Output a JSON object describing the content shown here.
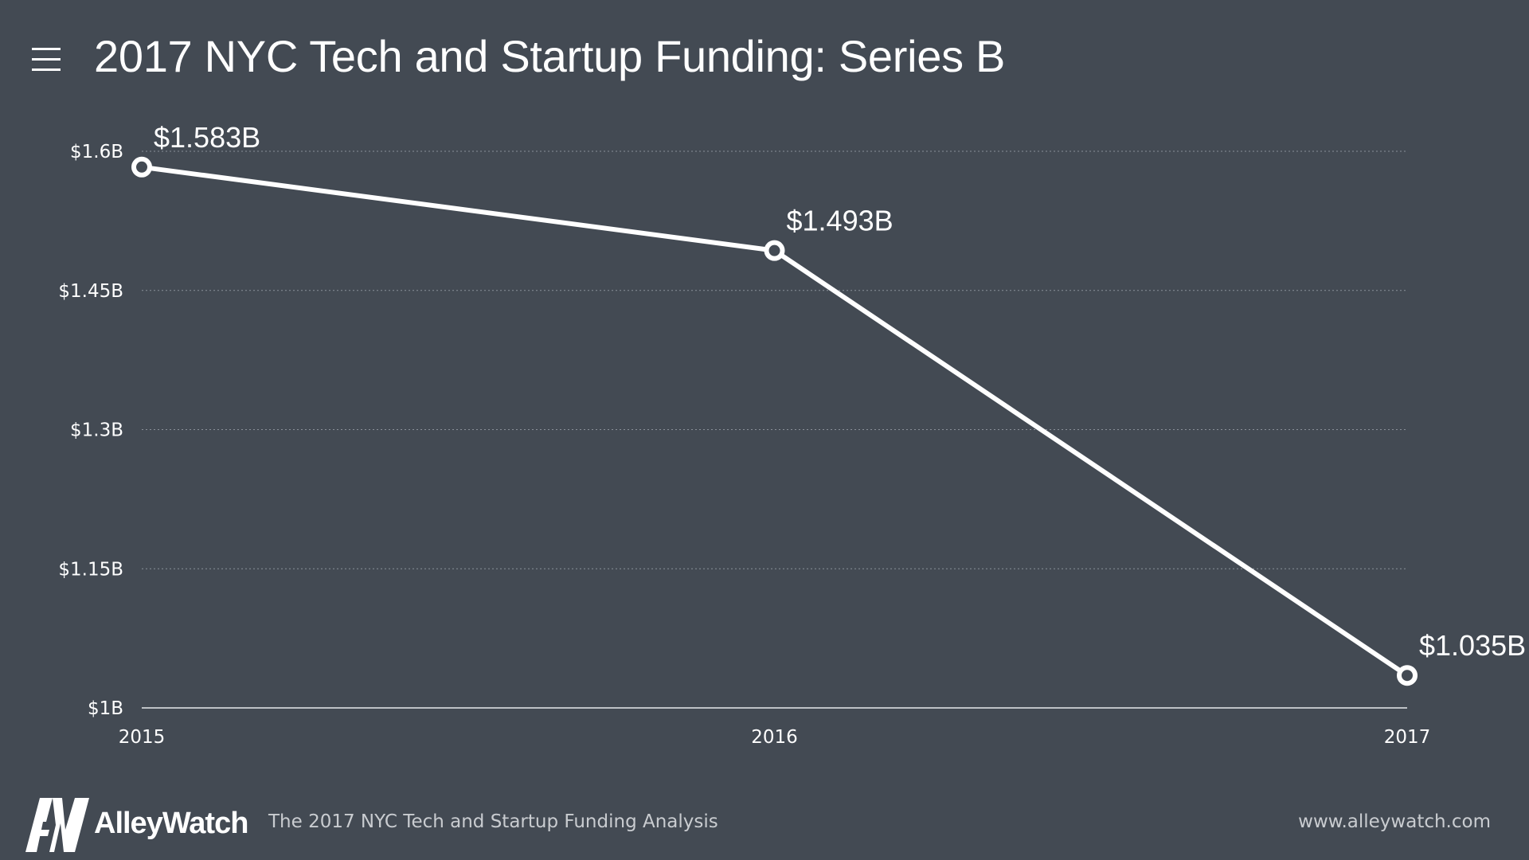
{
  "header": {
    "title": "2017 NYC Tech and Startup Funding: Series B",
    "menu_icon": "hamburger-menu-icon"
  },
  "chart_data": {
    "type": "line",
    "title": "2017 NYC Tech and Startup Funding: Series B",
    "xlabel": "",
    "ylabel": "",
    "categories": [
      "2015",
      "2016",
      "2017"
    ],
    "series": [
      {
        "name": "Series B Funding",
        "values": [
          1.583,
          1.493,
          1.035
        ],
        "labels": [
          "$1.583B",
          "$1.493B",
          "$1.035B"
        ]
      }
    ],
    "ylim": [
      1.0,
      1.6
    ],
    "yticks": [
      1.0,
      1.15,
      1.3,
      1.45,
      1.6
    ],
    "ytick_labels": [
      "$1B",
      "$1.15B",
      "$1.3B",
      "$1.45B",
      "$1.6B"
    ],
    "grid": true,
    "legend": "none",
    "colors": {
      "background": "#434a53",
      "line": "#ffffff",
      "grid": "#8a9099"
    }
  },
  "footer": {
    "brand": "AlleyWatch",
    "caption": "The 2017 NYC Tech and Startup Funding Analysis",
    "url": "www.alleywatch.com"
  }
}
